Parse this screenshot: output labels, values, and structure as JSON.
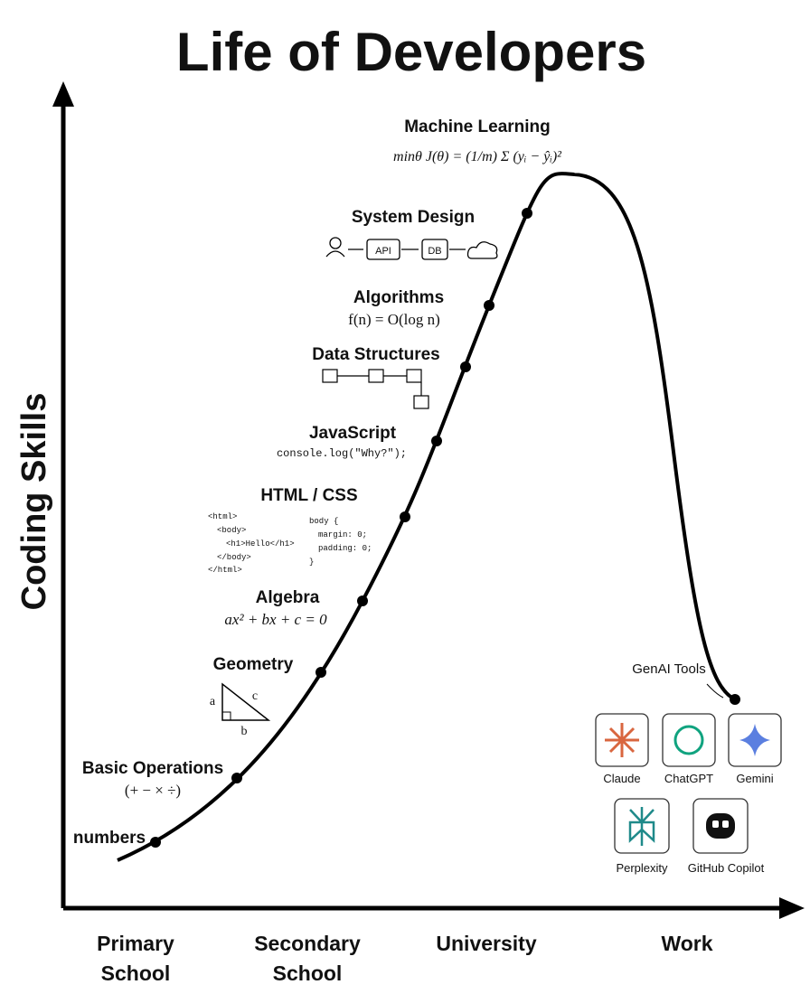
{
  "title": "Life of Developers",
  "y_axis_label": "Coding Skills",
  "x_axis_labels": [
    [
      "Primary",
      "School"
    ],
    [
      "Secondary",
      "School"
    ],
    [
      "University"
    ],
    [
      "Work"
    ]
  ],
  "milestones": {
    "numbers": {
      "label": "numbers"
    },
    "basic_operations": {
      "label": "Basic Operations",
      "detail": "(+ − × ÷)"
    },
    "geometry": {
      "label": "Geometry",
      "sides": [
        "a",
        "b",
        "c"
      ]
    },
    "algebra": {
      "label": "Algebra",
      "detail": "ax² + bx + c = 0"
    },
    "html_css": {
      "label": "HTML / CSS",
      "html_code": [
        "<html>",
        "<body>",
        "<h1>Hello</h1>",
        "</body>",
        "</html>"
      ],
      "css_code": [
        "body {",
        "margin: 0;",
        "padding: 0;",
        "}"
      ]
    },
    "javascript": {
      "label": "JavaScript",
      "detail": "console.log(\"Why?\");"
    },
    "data_structures": {
      "label": "Data Structures"
    },
    "algorithms": {
      "label": "Algorithms",
      "detail": "f(n) = O(log n)"
    },
    "system_design": {
      "label": "System Design",
      "boxes": [
        "API",
        "DB"
      ]
    },
    "machine_learning": {
      "label": "Machine Learning",
      "detail": "minθ J(θ) = (1/m) Σ (yᵢ − ŷᵢ)²"
    }
  },
  "genai": {
    "label": "GenAI Tools",
    "tools": [
      "Claude",
      "ChatGPT",
      "Gemini",
      "Perplexity",
      "GitHub Copilot"
    ]
  }
}
